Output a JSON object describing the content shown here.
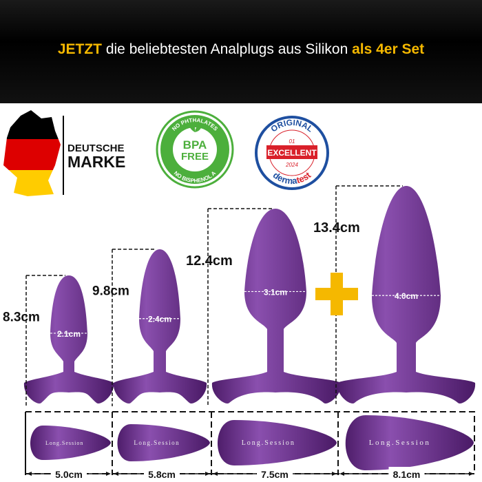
{
  "headline": {
    "part1": "JETZT",
    "part2": " die beliebtesten Analplugs aus Silikon ",
    "part3": "als 4er Set"
  },
  "badges": {
    "brand": {
      "line1": "DEUTSCHE",
      "line2": "MARKE"
    },
    "bpa": {
      "top": "NO PHTHALATES",
      "center1": "BPA",
      "center2": "FREE",
      "bottom": "NO BISPHENOL A"
    },
    "dermatest": {
      "top": "ORIGINAL",
      "num": "01",
      "label": "EXCELLENT",
      "year": "2024",
      "brand1": "derma",
      "brand2": "test"
    }
  },
  "colors": {
    "accent": "#f5b800",
    "plug": "#6b2d8c",
    "bpa": "#4caf3c",
    "derma_red": "#d9202a",
    "derma_blue": "#1e4fa0"
  },
  "plugs": [
    {
      "length": "8.3cm",
      "diameter": "2.1cm",
      "base": "5.0cm",
      "logo": "Long.Session"
    },
    {
      "length": "9.8cm",
      "diameter": "2.4cm",
      "base": "5.8cm",
      "logo": "Long.Session"
    },
    {
      "length": "12.4cm",
      "diameter": "3.1cm",
      "base": "7.5cm",
      "logo": "Long.Session"
    },
    {
      "length": "13.4cm",
      "diameter": "4.0cm",
      "base": "8.1cm",
      "logo": "Long.Session"
    }
  ],
  "plus_icon": "plus-icon"
}
